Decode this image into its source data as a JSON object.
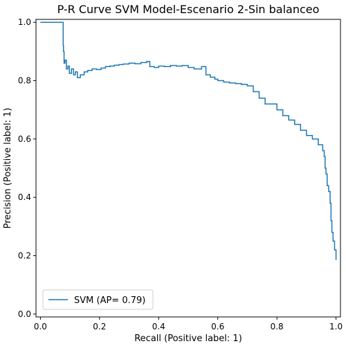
{
  "chart_data": {
    "type": "line",
    "title": "P-R Curve SVM Model-Escenario 2-Sin balanceo",
    "xlabel": "Recall (Positive label: 1)",
    "ylabel": "Precision (Positive label: 1)",
    "xlim": [
      -0.015,
      1.015
    ],
    "ylim": [
      -0.01,
      1.01
    ],
    "xticks": [
      0.0,
      0.2,
      0.4,
      0.6,
      0.8,
      1.0
    ],
    "yticks": [
      0.0,
      0.2,
      0.4,
      0.6,
      0.8,
      1.0
    ],
    "xtick_labels": [
      "0.0",
      "0.2",
      "0.4",
      "0.6",
      "0.8",
      "1.0"
    ],
    "ytick_labels": [
      "0.0",
      "0.2",
      "0.4",
      "0.6",
      "0.8",
      "1.0"
    ],
    "grid": false,
    "legend": {
      "placement": "lower-left",
      "entries": [
        "SVM (AP= 0.79)"
      ]
    },
    "series": [
      {
        "name": "SVM (AP= 0.79)",
        "color": "#1f77b4",
        "step": true,
        "x": [
          0.0,
          0.076,
          0.077,
          0.078,
          0.08,
          0.083,
          0.088,
          0.093,
          0.098,
          0.105,
          0.112,
          0.118,
          0.125,
          0.135,
          0.148,
          0.16,
          0.175,
          0.19,
          0.205,
          0.22,
          0.235,
          0.25,
          0.265,
          0.28,
          0.3,
          0.32,
          0.34,
          0.36,
          0.37,
          0.385,
          0.4,
          0.42,
          0.44,
          0.46,
          0.48,
          0.5,
          0.52,
          0.545,
          0.56,
          0.575,
          0.59,
          0.6,
          0.62,
          0.64,
          0.66,
          0.68,
          0.7,
          0.72,
          0.74,
          0.76,
          0.78,
          0.8,
          0.82,
          0.84,
          0.86,
          0.88,
          0.9,
          0.92,
          0.94,
          0.955,
          0.96,
          0.963,
          0.966,
          0.97,
          0.975,
          0.98,
          0.983,
          0.986,
          0.99,
          0.995,
          1.0
        ],
        "y": [
          1.0,
          1.0,
          0.92,
          0.9,
          0.86,
          0.87,
          0.84,
          0.85,
          0.825,
          0.84,
          0.82,
          0.83,
          0.81,
          0.82,
          0.83,
          0.835,
          0.84,
          0.838,
          0.843,
          0.848,
          0.85,
          0.853,
          0.855,
          0.857,
          0.86,
          0.858,
          0.862,
          0.866,
          0.848,
          0.845,
          0.85,
          0.848,
          0.852,
          0.85,
          0.852,
          0.845,
          0.84,
          0.848,
          0.82,
          0.812,
          0.805,
          0.8,
          0.795,
          0.792,
          0.79,
          0.787,
          0.782,
          0.762,
          0.74,
          0.72,
          0.72,
          0.7,
          0.68,
          0.665,
          0.65,
          0.63,
          0.612,
          0.6,
          0.58,
          0.56,
          0.54,
          0.5,
          0.48,
          0.44,
          0.42,
          0.38,
          0.32,
          0.28,
          0.25,
          0.22,
          0.185
        ]
      }
    ]
  }
}
